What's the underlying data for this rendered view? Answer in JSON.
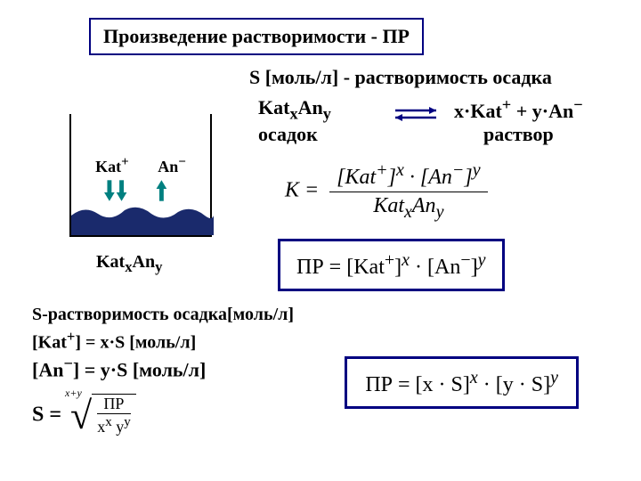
{
  "title": "Произведение растворимости - ПР",
  "s_definition": "S [моль/л] - растворимость осадка",
  "compound": {
    "left_formula_html": "Kat<sub>x</sub>An<sub>y</sub>",
    "left_label": "осадок",
    "right_formula_html": "x·Kat<sup>+</sup> + y·An<sup>−</sup>",
    "right_label": "раствор"
  },
  "beaker": {
    "kat_html": "Kat<sup>+</sup>",
    "an_html": "An<sup>−</sup>",
    "compound_html": "Kat<sub>x</sub>An<sub>y</sub>",
    "border_color": "#000000",
    "precipitate_color": "#1a2a6c",
    "down_arrow_color": "#008080",
    "up_arrow_color": "#008080"
  },
  "equilibrium_arrows": {
    "color": "#000080"
  },
  "k_equation": {
    "lhs": "К",
    "numerator_html": "[Kat<sup>+</sup>]<sup><i>x</i></sup> · [An<sup>−</sup>]<sup><i>y</i></sup>",
    "denominator_html": "Kat<sub>x</sub>An<sub>y</sub>",
    "text_color": "#000000"
  },
  "pr_box": {
    "html": "ПР = [Kat<sup>+</sup>]<sup><i>x</i></sup> · [An<sup>−</sup>]<sup><i>y</i></sup>",
    "border_color": "#000080"
  },
  "s_block": {
    "line1": "S-растворимость осадка[моль/л]",
    "line2_html": "[Kat<sup>+</sup>] = x·S [моль/л]",
    "line3_html": "[An<sup>−</sup>] = y·S [моль/л]"
  },
  "pr_calc_box": {
    "html": "ПР = [x · S]<sup><i>x</i></sup> · [y · S]<sup><i>y</i></sup>",
    "border_color": "#000080"
  },
  "s_root": {
    "lhs": "S =",
    "index_html": "x+y",
    "num": "ПР",
    "den_html": "x<sup>x</sup> y<sup>y</sup>"
  },
  "colors": {
    "box_border": "#000080",
    "text": "#000000",
    "background": "#ffffff"
  },
  "typography": {
    "title_fontsize": 22,
    "body_fontsize": 22,
    "formula_fontsize": 24,
    "font_family": "Times New Roman"
  }
}
